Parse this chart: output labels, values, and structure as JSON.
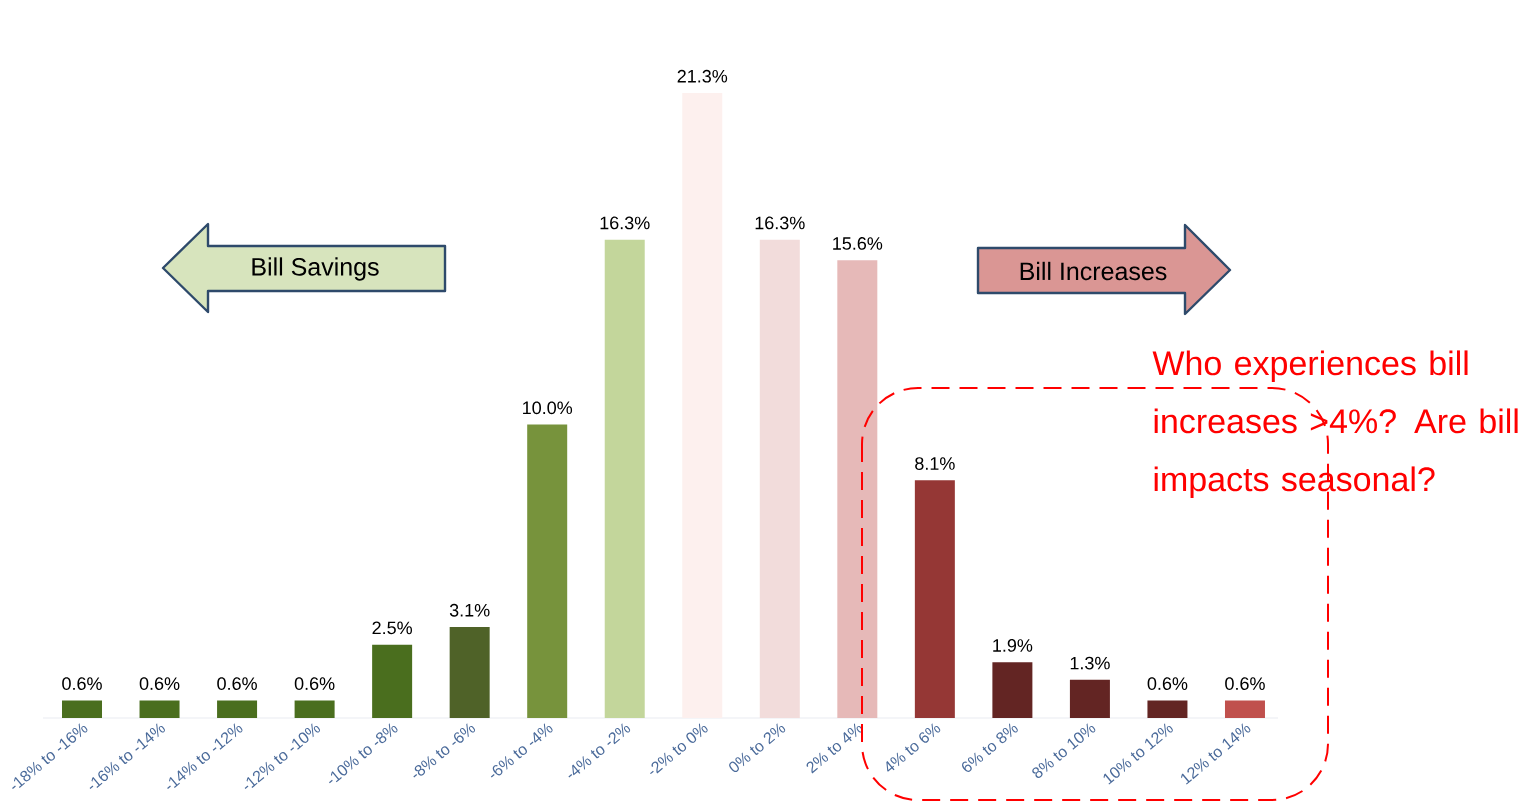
{
  "chart_data": {
    "type": "bar",
    "categories": [
      "-18% to -16%",
      "-16% to -14%",
      "-14% to -12%",
      "-12% to -10%",
      "-10% to -8%",
      "-8% to -6%",
      "-6% to -4%",
      "-4% to -2%",
      "-2% to 0%",
      "0% to 2%",
      "2% to 4%",
      "4% to 6%",
      "6% to 8%",
      "8% to 10%",
      "10% to 12%",
      "12% to 14%"
    ],
    "values": [
      0.6,
      0.6,
      0.6,
      0.6,
      2.5,
      3.1,
      10.0,
      16.3,
      21.3,
      16.3,
      15.6,
      8.1,
      1.9,
      1.3,
      0.6,
      0.6
    ],
    "value_labels": [
      "0.6%",
      "0.6%",
      "0.6%",
      "0.6%",
      "2.5%",
      "3.1%",
      "10.0%",
      "16.3%",
      "21.3%",
      "16.3%",
      "15.6%",
      "8.1%",
      "1.9%",
      "1.3%",
      "0.6%",
      "0.6%"
    ],
    "colors": [
      "#4a6e1e",
      "#4a6e1e",
      "#4a6e1e",
      "#4a6e1e",
      "#4a6e1e",
      "#4f6228",
      "#77933c",
      "#c3d69b",
      "#fdf0ee",
      "#f2dcdb",
      "#e6b9b8",
      "#953735",
      "#632523",
      "#632523",
      "#632523",
      "#c0504d"
    ],
    "annotations": [
      "Bill Savings",
      "Bill Increases",
      "Who experiences bill increases >4%? Are bill impacts seasonal?"
    ]
  }
}
